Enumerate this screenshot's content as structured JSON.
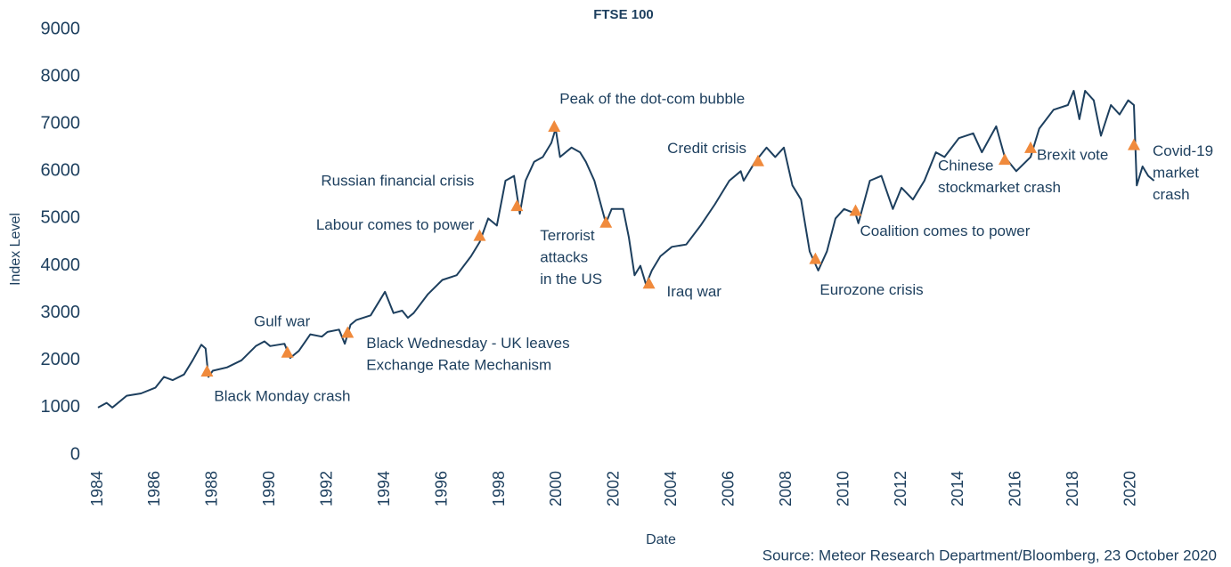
{
  "chart_data": {
    "type": "line",
    "title": "FTSE 100",
    "xlabel": "Date",
    "ylabel": "Index Level",
    "source": "Source: Meteor Research Department/Bloomberg, 23 October  2020",
    "xlim": [
      1984,
      2021
    ],
    "ylim": [
      0,
      9000
    ],
    "xticks": [
      1984,
      1986,
      1988,
      1990,
      1992,
      1994,
      1996,
      1998,
      2000,
      2002,
      2004,
      2006,
      2008,
      2010,
      2012,
      2014,
      2016,
      2018,
      2020
    ],
    "yticks": [
      0,
      1000,
      2000,
      3000,
      4000,
      5000,
      6000,
      7000,
      8000,
      9000
    ],
    "grid": false,
    "series": [
      {
        "name": "FTSE 100",
        "color": "#1d3f5e",
        "x": [
          1984.0,
          1984.3,
          1984.5,
          1985,
          1985.5,
          1986,
          1986.3,
          1986.6,
          1987,
          1987.3,
          1987.6,
          1987.75,
          1987.85,
          1988,
          1988.5,
          1989,
          1989.5,
          1989.8,
          1990,
          1990.5,
          1990.7,
          1991,
          1991.4,
          1991.8,
          1992,
          1992.4,
          1992.6,
          1992.8,
          1993,
          1993.5,
          1994,
          1994.3,
          1994.6,
          1994.8,
          1995,
          1995.5,
          1996,
          1996.5,
          1997,
          1997.3,
          1997.6,
          1997.9,
          1998.2,
          1998.5,
          1998.7,
          1998.9,
          1999.2,
          1999.5,
          1999.8,
          1999.95,
          2000.1,
          2000.5,
          2000.8,
          2001,
          2001.3,
          2001.7,
          2001.9,
          2002.3,
          2002.5,
          2002.7,
          2002.9,
          2003.1,
          2003.3,
          2003.6,
          2004,
          2004.5,
          2005,
          2005.5,
          2006,
          2006.4,
          2006.5,
          2006.9,
          2007.3,
          2007.6,
          2007.9,
          2008.2,
          2008.5,
          2008.8,
          2009.1,
          2009.4,
          2009.7,
          2010,
          2010.4,
          2010.5,
          2010.9,
          2011.3,
          2011.7,
          2012,
          2012.4,
          2012.8,
          2013.2,
          2013.5,
          2014,
          2014.5,
          2014.8,
          2015.3,
          2015.6,
          2016,
          2016.5,
          2016.8,
          2017.3,
          2017.8,
          2018,
          2018.2,
          2018.4,
          2018.7,
          2018.95,
          2019.3,
          2019.6,
          2019.9,
          2020.1,
          2020.2,
          2020.4,
          2020.6,
          2020.8
        ],
        "values": [
          1000,
          1100,
          1000,
          1250,
          1300,
          1420,
          1650,
          1580,
          1700,
          2000,
          2330,
          2250,
          1650,
          1780,
          1850,
          2000,
          2300,
          2400,
          2300,
          2350,
          2050,
          2200,
          2550,
          2500,
          2600,
          2650,
          2350,
          2750,
          2850,
          2950,
          3450,
          3000,
          3050,
          2900,
          3000,
          3400,
          3700,
          3800,
          4200,
          4500,
          5000,
          4850,
          5800,
          5900,
          5100,
          5800,
          6200,
          6300,
          6600,
          6900,
          6300,
          6500,
          6400,
          6200,
          5800,
          4900,
          5200,
          5200,
          4600,
          3800,
          4000,
          3600,
          3900,
          4200,
          4400,
          4450,
          4850,
          5300,
          5800,
          6000,
          5800,
          6200,
          6500,
          6300,
          6500,
          5700,
          5400,
          4300,
          3900,
          4300,
          5000,
          5200,
          5100,
          4900,
          5800,
          5900,
          5200,
          5650,
          5400,
          5800,
          6400,
          6300,
          6700,
          6800,
          6400,
          6950,
          6300,
          6000,
          6300,
          6900,
          7300,
          7400,
          7700,
          7100,
          7700,
          7500,
          6750,
          7400,
          7200,
          7500,
          7400,
          5700,
          6100,
          5900,
          5800
        ]
      }
    ],
    "marker_color": "#f08a3c",
    "events": [
      {
        "label": [
          "Black Monday crash"
        ],
        "x": 1987.8,
        "y": 1750
      },
      {
        "label": [
          "Gulf war"
        ],
        "x": 1990.6,
        "y": 2150
      },
      {
        "label": [
          "Black Wednesday  - UK leaves",
          "Exchange Rate Mechanism"
        ],
        "x": 1992.7,
        "y": 2570
      },
      {
        "label": [
          "Labour comes to power"
        ],
        "x": 1997.3,
        "y": 4620
      },
      {
        "label": [
          "Russian financial crisis"
        ],
        "x": 1998.6,
        "y": 5250
      },
      {
        "label": [
          "Peak of the dot-com bubble"
        ],
        "x": 1999.9,
        "y": 6930
      },
      {
        "label": [
          "Terrorist",
          "attacks",
          "in the US"
        ],
        "x": 2001.7,
        "y": 4900
      },
      {
        "label": [
          "Iraq war"
        ],
        "x": 2003.2,
        "y": 3610
      },
      {
        "label": [
          "Credit crisis"
        ],
        "x": 2007.0,
        "y": 6200
      },
      {
        "label": [
          "Eurozone crisis"
        ],
        "x": 2009.0,
        "y": 4130
      },
      {
        "label": [
          "Coalition comes to power"
        ],
        "x": 2010.4,
        "y": 5150
      },
      {
        "label": [
          "Chinese",
          "stockmarket crash"
        ],
        "x": 2015.6,
        "y": 6230
      },
      {
        "label": [
          "Brexit vote"
        ],
        "x": 2016.5,
        "y": 6480
      },
      {
        "label": [
          "Covid-19",
          "market",
          "crash"
        ],
        "x": 2020.1,
        "y": 6540
      }
    ]
  }
}
